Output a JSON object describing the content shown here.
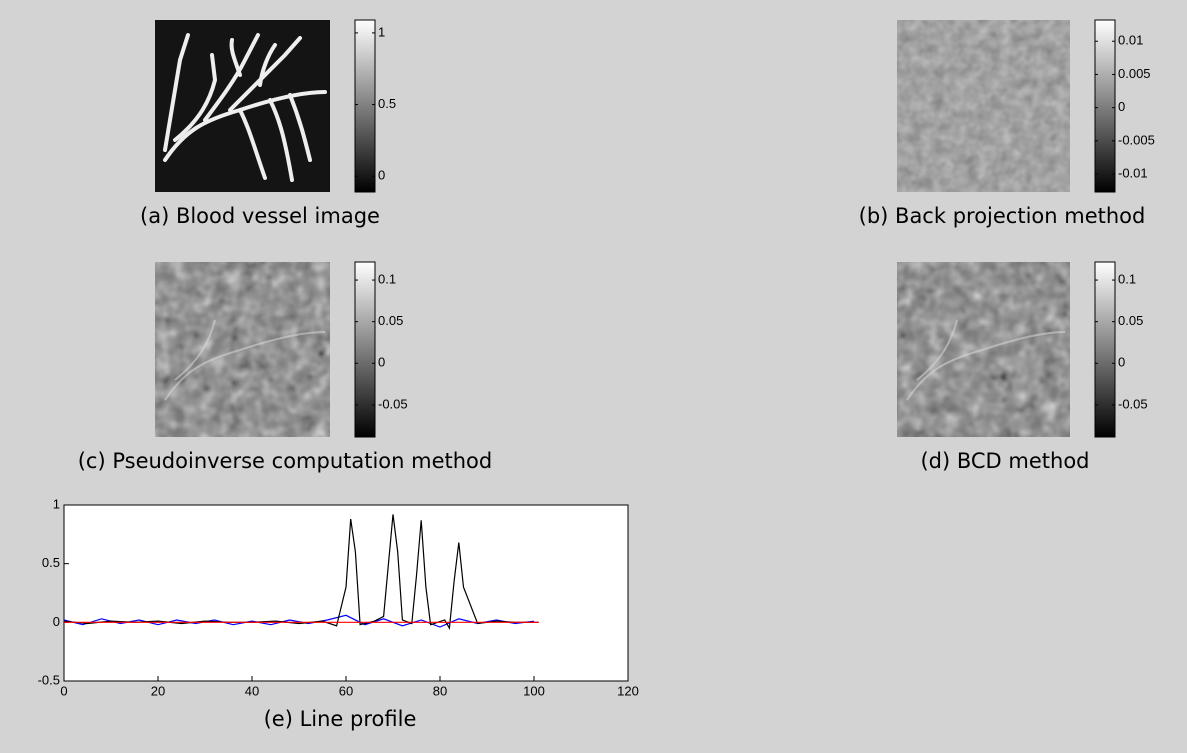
{
  "chart_data": [
    {
      "type": "colorbar",
      "caption": "(a) Blood vessel image",
      "ylim": [
        -0.11,
        1.09
      ],
      "yticks": [
        0,
        0.5,
        1
      ]
    },
    {
      "type": "colorbar",
      "caption": "(b) Back projection method",
      "ylim": [
        -0.0127,
        0.0132
      ],
      "yticks": [
        -0.01,
        -0.005,
        0,
        0.005,
        0.01
      ]
    },
    {
      "type": "colorbar",
      "caption": "(c) Pseudoinverse computation method",
      "ylim": [
        -0.0886,
        0.1217
      ],
      "yticks": [
        -0.05,
        0,
        0.05,
        0.1
      ]
    },
    {
      "type": "colorbar",
      "caption": "(d) BCD method",
      "ylim": [
        -0.0886,
        0.1217
      ],
      "yticks": [
        -0.05,
        0,
        0.05,
        0.1
      ]
    },
    {
      "type": "line",
      "caption": "(e) Line profile",
      "xlim": [
        0,
        120
      ],
      "ylim": [
        -0.5,
        1
      ],
      "xticks": [
        0,
        20,
        40,
        60,
        80,
        100,
        120
      ],
      "yticks": [
        -0.5,
        0,
        0.5,
        1
      ],
      "series": [
        {
          "color": "#0000ff",
          "x": [
            0,
            4,
            8,
            12,
            16,
            20,
            24,
            28,
            32,
            36,
            40,
            44,
            48,
            52,
            56,
            60,
            64,
            68,
            72,
            76,
            80,
            84,
            88,
            92,
            96,
            100
          ],
          "values": [
            0.02,
            -0.02,
            0.03,
            -0.01,
            0.02,
            -0.02,
            0.02,
            -0.01,
            0.02,
            -0.02,
            0.01,
            -0.02,
            0.02,
            -0.01,
            0.02,
            0.06,
            -0.02,
            0.03,
            -0.03,
            0.02,
            -0.04,
            0.03,
            -0.01,
            0.02,
            -0.01,
            0.01
          ]
        },
        {
          "color": "#000000",
          "x": [
            0,
            5,
            10,
            15,
            20,
            25,
            30,
            35,
            40,
            45,
            50,
            55,
            58,
            60,
            61,
            62,
            63,
            66,
            68,
            70,
            71,
            72,
            74,
            75,
            76,
            77,
            78,
            81,
            82,
            83,
            84,
            85,
            88,
            92,
            96,
            101
          ],
          "values": [
            0.01,
            -0.01,
            0.01,
            0,
            0.01,
            -0.01,
            0.01,
            0,
            0,
            0.01,
            -0.01,
            0.01,
            -0.03,
            0.3,
            0.88,
            0.6,
            -0.02,
            0.01,
            0.05,
            0.92,
            0.6,
            0.02,
            -0.01,
            0.4,
            0.87,
            0.3,
            -0.02,
            0.02,
            -0.05,
            0.35,
            0.68,
            0.3,
            -0.01,
            0.01,
            0,
            0
          ]
        },
        {
          "color": "#ff0000",
          "x": [
            0,
            101
          ],
          "values": [
            0,
            0
          ]
        }
      ]
    }
  ]
}
